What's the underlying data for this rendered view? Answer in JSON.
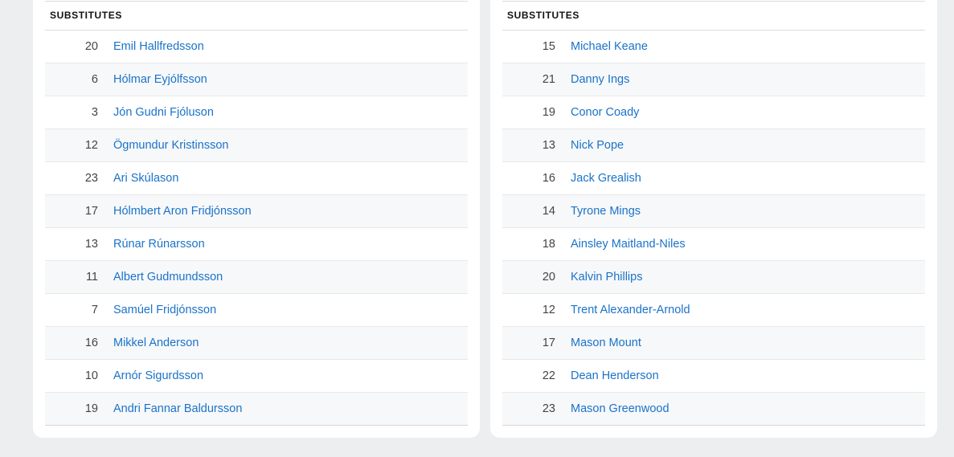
{
  "left": {
    "header": "SUBSTITUTES",
    "players": [
      {
        "number": "20",
        "name": "Emil Hallfredsson"
      },
      {
        "number": "6",
        "name": "Hólmar Eyjólfsson"
      },
      {
        "number": "3",
        "name": "Jón Gudni Fjóluson"
      },
      {
        "number": "12",
        "name": "Ögmundur Kristinsson"
      },
      {
        "number": "23",
        "name": "Ari Skúlason"
      },
      {
        "number": "17",
        "name": "Hólmbert Aron Fridjónsson"
      },
      {
        "number": "13",
        "name": "Rúnar Rúnarsson"
      },
      {
        "number": "11",
        "name": "Albert Gudmundsson"
      },
      {
        "number": "7",
        "name": "Samúel Fridjónsson"
      },
      {
        "number": "16",
        "name": "Mikkel Anderson"
      },
      {
        "number": "10",
        "name": "Arnór Sigurdsson"
      },
      {
        "number": "19",
        "name": "Andri Fannar Baldursson"
      }
    ]
  },
  "right": {
    "header": "SUBSTITUTES",
    "players": [
      {
        "number": "15",
        "name": "Michael Keane"
      },
      {
        "number": "21",
        "name": "Danny Ings"
      },
      {
        "number": "19",
        "name": "Conor Coady"
      },
      {
        "number": "13",
        "name": "Nick Pope"
      },
      {
        "number": "16",
        "name": "Jack Grealish"
      },
      {
        "number": "14",
        "name": "Tyrone Mings"
      },
      {
        "number": "18",
        "name": "Ainsley Maitland-Niles"
      },
      {
        "number": "20",
        "name": "Kalvin Phillips"
      },
      {
        "number": "12",
        "name": "Trent Alexander-Arnold"
      },
      {
        "number": "17",
        "name": "Mason Mount"
      },
      {
        "number": "22",
        "name": "Dean Henderson"
      },
      {
        "number": "23",
        "name": "Mason Greenwood"
      }
    ]
  }
}
